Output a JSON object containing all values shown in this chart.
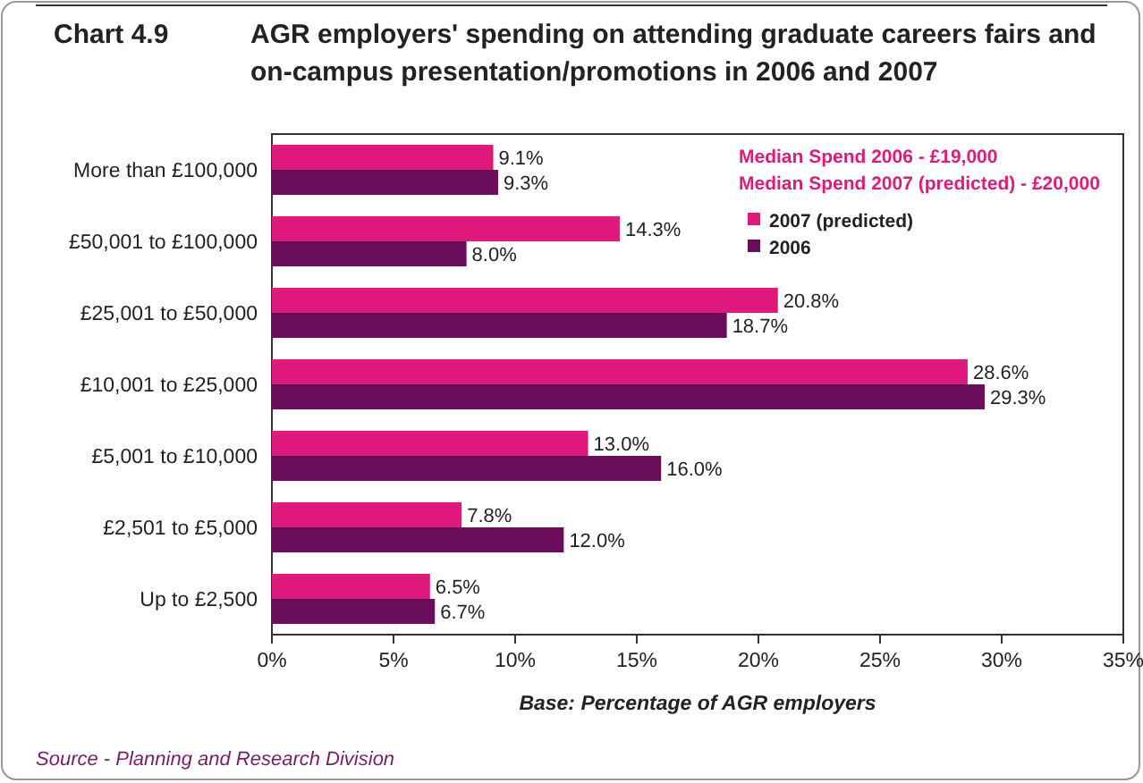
{
  "chart_data": {
    "type": "bar",
    "orientation": "horizontal",
    "title": "Chart 4.9",
    "subtitle": "AGR employers' spending on attending graduate careers fairs and on-campus presentation/promotions in 2006 and 2007",
    "xlabel": "Base: Percentage of AGR employers",
    "categories": [
      "More than £100,000",
      "£50,001 to £100,000",
      "£25,001 to £50,000",
      "£10,001 to £25,000",
      "£5,001 to £10,000",
      "£2,501 to £5,000",
      "Up to £2,500"
    ],
    "series": [
      {
        "name": "2007 (predicted)",
        "color": "#e2197c",
        "values": [
          9.1,
          14.3,
          20.8,
          28.6,
          13.0,
          7.8,
          6.5
        ],
        "value_labels": [
          "9.1%",
          "14.3%",
          "20.8%",
          "28.6%",
          "13.0%",
          "7.8%",
          "6.5%"
        ]
      },
      {
        "name": "2006",
        "color": "#6c0d5c",
        "values": [
          9.3,
          8.0,
          18.7,
          29.3,
          16.0,
          12.0,
          6.7
        ],
        "value_labels": [
          "9.3%",
          "8.0%",
          "18.7%",
          "29.3%",
          "16.0%",
          "12.0%",
          "6.7%"
        ]
      }
    ],
    "xlim": [
      0,
      35
    ],
    "xticks": [
      {
        "value": 0,
        "label": "0%"
      },
      {
        "value": 5,
        "label": "5%"
      },
      {
        "value": 10,
        "label": "10%"
      },
      {
        "value": 15,
        "label": "15%"
      },
      {
        "value": 20,
        "label": "20%"
      },
      {
        "value": 25,
        "label": "25%"
      },
      {
        "value": 30,
        "label": "30%"
      },
      {
        "value": 35,
        "label": "35%"
      }
    ],
    "grid": false,
    "legend": "top right",
    "annotations": [
      "Median Spend 2006 - £19,000",
      "Median Spend 2007 (predicted) - £20,000",
      "Source - Planning and Research Division"
    ]
  }
}
